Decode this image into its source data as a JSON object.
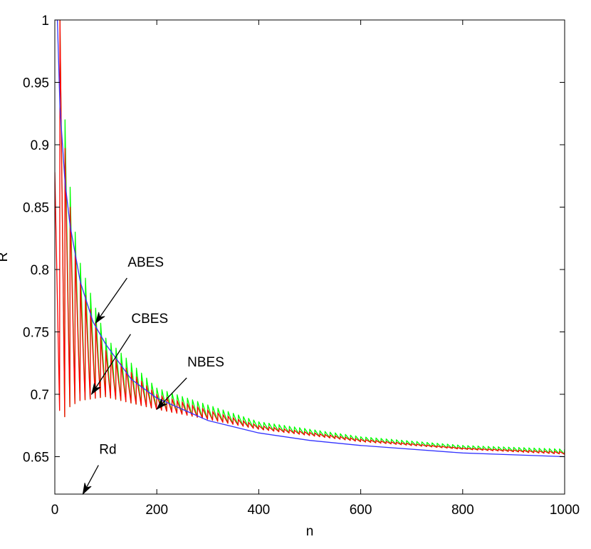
{
  "chart_data": {
    "type": "line",
    "title": "",
    "xlabel": "n",
    "ylabel": "R",
    "xlim": [
      0,
      1000
    ],
    "ylim": [
      0.62,
      1.0
    ],
    "grid": false,
    "legend": "none",
    "x_ticks": [
      0,
      200,
      400,
      600,
      800,
      1000
    ],
    "x_tick_labels": [
      "0",
      "200",
      "400",
      "600",
      "800",
      "1000"
    ],
    "y_ticks": [
      0.65,
      0.7,
      0.75,
      0.8,
      0.85,
      0.9,
      0.95,
      1.0
    ],
    "y_tick_labels": [
      "0.65",
      "0.7",
      "0.75",
      "0.8",
      "0.85",
      "0.9",
      "0.95",
      "1"
    ],
    "series": [
      {
        "name": "ABES",
        "color": "#00ff00",
        "sawtooth_period": 10,
        "peaks": [
          [
            10,
            1.0
          ],
          [
            20,
            0.92
          ],
          [
            30,
            0.866
          ],
          [
            40,
            0.83
          ],
          [
            50,
            0.805
          ],
          [
            100,
            0.745
          ],
          [
            200,
            0.705
          ],
          [
            400,
            0.678
          ],
          [
            600,
            0.666
          ],
          [
            800,
            0.659
          ],
          [
            1000,
            0.656
          ]
        ],
        "troughs": [
          [
            20,
            0.682
          ],
          [
            30,
            0.69
          ],
          [
            50,
            0.695
          ],
          [
            100,
            0.698
          ],
          [
            200,
            0.688
          ],
          [
            400,
            0.672
          ],
          [
            600,
            0.662
          ],
          [
            800,
            0.656
          ],
          [
            1000,
            0.652
          ]
        ]
      },
      {
        "name": "CBES",
        "color": "#ff0000",
        "sawtooth_period": 10,
        "peaks": [
          [
            0,
            0.878
          ],
          [
            10,
            1.0
          ],
          [
            20,
            0.897
          ],
          [
            30,
            0.85
          ],
          [
            40,
            0.815
          ],
          [
            50,
            0.79
          ],
          [
            100,
            0.735
          ],
          [
            200,
            0.7
          ],
          [
            400,
            0.675
          ],
          [
            600,
            0.664
          ],
          [
            800,
            0.657
          ],
          [
            1000,
            0.654
          ]
        ],
        "troughs": [
          [
            10,
            0.687
          ],
          [
            20,
            0.682
          ],
          [
            30,
            0.69
          ],
          [
            50,
            0.695
          ],
          [
            100,
            0.698
          ],
          [
            200,
            0.688
          ],
          [
            400,
            0.672
          ],
          [
            600,
            0.662
          ],
          [
            800,
            0.656
          ],
          [
            1000,
            0.652
          ]
        ]
      },
      {
        "name": "NBES",
        "color": "#3333ff",
        "x": [
          0,
          5,
          10,
          20,
          30,
          50,
          75,
          100,
          150,
          200,
          300,
          400,
          500,
          600,
          800,
          1000
        ],
        "values": [
          1.0,
          1.0,
          0.93,
          0.87,
          0.835,
          0.79,
          0.758,
          0.74,
          0.712,
          0.697,
          0.679,
          0.669,
          0.663,
          0.659,
          0.653,
          0.65
        ]
      }
    ],
    "annotations": [
      {
        "label": "ABES",
        "text_xy": [
          143,
          0.8
        ],
        "arrow_to": [
          80,
          0.757
        ]
      },
      {
        "label": "CBES",
        "text_xy": [
          150,
          0.755
        ],
        "arrow_to": [
          72,
          0.7
        ]
      },
      {
        "label": "NBES",
        "text_xy": [
          260,
          0.72
        ],
        "arrow_to": [
          200,
          0.688
        ]
      },
      {
        "label": "Rd",
        "text_xy": [
          87,
          0.65
        ],
        "arrow_to": [
          55,
          0.62
        ]
      }
    ]
  }
}
